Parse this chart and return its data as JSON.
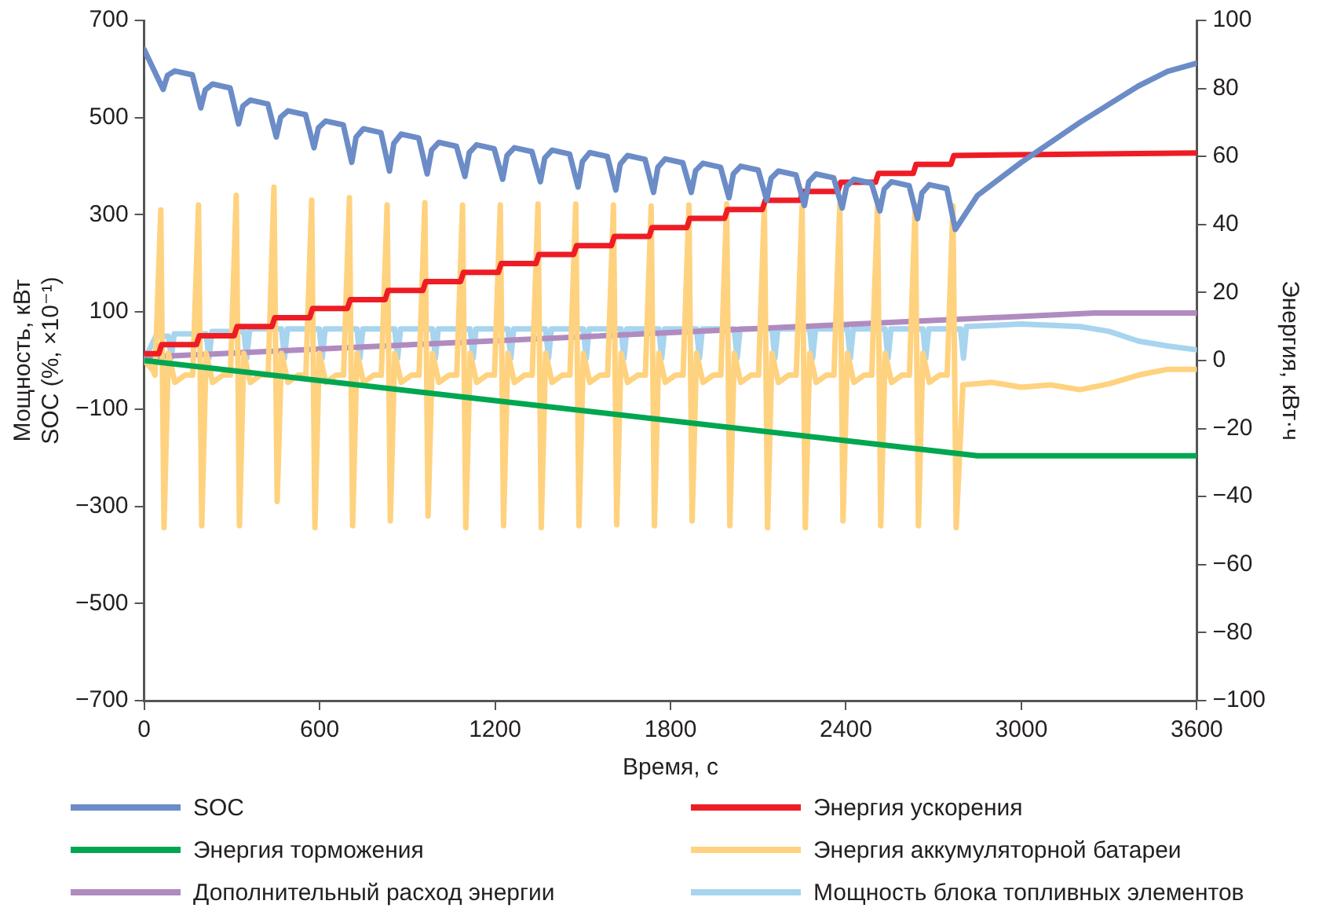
{
  "chart_data": {
    "type": "line",
    "xlabel": "Время, с",
    "ylabel": "Мощность, кВт\nSOC (%, ×10⁻¹)",
    "y2label": "Энергия, кВт·ч",
    "xlim": [
      0,
      3600
    ],
    "xticks": [
      0,
      600,
      1200,
      1800,
      2400,
      3000,
      3600
    ],
    "ylim": [
      -700,
      700
    ],
    "yticks": [
      {
        "value": -700,
        "label": "−700"
      },
      {
        "value": -500,
        "label": "−500"
      },
      {
        "value": -300,
        "label": "−300"
      },
      {
        "value": -100,
        "label": "−100"
      },
      100,
      300,
      500,
      700
    ],
    "y2lim": [
      -100,
      100
    ],
    "y2ticks": [
      {
        "value": -100,
        "label": "−100"
      },
      {
        "value": -80,
        "label": "−80"
      },
      {
        "value": -60,
        "label": "−60"
      },
      {
        "value": -40,
        "label": "−40"
      },
      {
        "value": -20,
        "label": "−20"
      },
      0,
      20,
      40,
      60,
      80,
      100
    ],
    "grid": false,
    "legend": "bottom",
    "marker": "none",
    "line_style": "solid",
    "series": [
      {
        "name": "SOC",
        "color": "#6b8cc7",
        "x": [
          0,
          65,
          80,
          105,
          165,
          194,
          209,
          234,
          294,
          323,
          338,
          363,
          423,
          452,
          467,
          492,
          552,
          581,
          596,
          621,
          681,
          710,
          725,
          750,
          810,
          839,
          854,
          879,
          939,
          968,
          983,
          1008,
          1068,
          1097,
          1112,
          1137,
          1197,
          1226,
          1241,
          1266,
          1326,
          1355,
          1370,
          1395,
          1455,
          1484,
          1499,
          1524,
          1584,
          1613,
          1628,
          1653,
          1713,
          1742,
          1757,
          1782,
          1842,
          1871,
          1886,
          1911,
          1971,
          2000,
          2015,
          2040,
          2100,
          2129,
          2144,
          2169,
          2229,
          2258,
          2273,
          2298,
          2358,
          2387,
          2402,
          2427,
          2487,
          2516,
          2531,
          2556,
          2616,
          2645,
          2660,
          2685,
          2745,
          2774,
          2850,
          3000,
          3200,
          3400,
          3500,
          3600
        ],
        "values": [
          640,
          558,
          587,
          596,
          588,
          520,
          557,
          569,
          561,
          487,
          524,
          536,
          528,
          460,
          501,
          514,
          506,
          438,
          479,
          493,
          485,
          408,
          460,
          477,
          469,
          390,
          447,
          466,
          458,
          384,
          433,
          449,
          441,
          379,
          428,
          444,
          436,
          373,
          422,
          438,
          430,
          368,
          417,
          433,
          425,
          357,
          410,
          428,
          420,
          351,
          404,
          422,
          414,
          346,
          398,
          415,
          407,
          346,
          391,
          406,
          398,
          335,
          384,
          400,
          392,
          330,
          375,
          390,
          382,
          319,
          368,
          384,
          376,
          314,
          358,
          373,
          365,
          308,
          353,
          368,
          360,
          292,
          345,
          362,
          354,
          270,
          340,
          408,
          490,
          565,
          595,
          612
        ]
      },
      {
        "name": "Энергия ускорения",
        "color": "#ee1c25",
        "axis": "y2",
        "x": [
          0,
          50,
          60,
          179,
          189,
          308,
          318,
          437,
          447,
          566,
          576,
          695,
          705,
          824,
          834,
          953,
          963,
          1082,
          1092,
          1211,
          1221,
          1340,
          1350,
          1469,
          1479,
          1598,
          1608,
          1727,
          1737,
          1856,
          1866,
          1985,
          1995,
          2114,
          2124,
          2243,
          2253,
          2372,
          2382,
          2501,
          2511,
          2630,
          2640,
          2759,
          2769,
          3600
        ],
        "values": [
          2,
          2,
          4.7,
          4.7,
          7.3,
          7.3,
          10,
          10,
          12.6,
          12.6,
          15.3,
          15.3,
          17.9,
          17.9,
          20.6,
          20.6,
          23.2,
          23.2,
          25.9,
          25.9,
          28.5,
          28.5,
          31.2,
          31.2,
          33.8,
          33.8,
          36.5,
          36.5,
          39.1,
          39.1,
          41.8,
          41.8,
          44.4,
          44.4,
          47.1,
          47.1,
          49.7,
          49.7,
          52.4,
          52.4,
          55,
          55,
          57.7,
          57.7,
          60.3,
          61
        ]
      },
      {
        "name": "Энергия торможения",
        "color": "#00a650",
        "axis": "y2",
        "x": [
          0,
          2850,
          3600
        ],
        "values": [
          0,
          -28,
          -28
        ]
      },
      {
        "name": "Энергия аккумуляторной батареи",
        "color": "#ffd27f",
        "x": [
          0,
          30,
          37,
          57,
          68,
          83,
          105,
          140,
          166,
          186,
          197,
          212,
          234,
          269,
          295,
          315,
          326,
          341,
          363,
          398,
          424,
          444,
          455,
          470,
          492,
          527,
          553,
          573,
          584,
          599,
          621,
          656,
          682,
          702,
          713,
          728,
          750,
          785,
          811,
          831,
          842,
          857,
          879,
          914,
          940,
          960,
          971,
          986,
          1008,
          1043,
          1069,
          1089,
          1100,
          1115,
          1137,
          1172,
          1198,
          1218,
          1229,
          1244,
          1266,
          1301,
          1327,
          1347,
          1358,
          1373,
          1395,
          1430,
          1456,
          1476,
          1487,
          1502,
          1524,
          1559,
          1585,
          1605,
          1616,
          1631,
          1653,
          1688,
          1714,
          1734,
          1745,
          1760,
          1782,
          1817,
          1843,
          1863,
          1874,
          1889,
          1911,
          1946,
          1972,
          1992,
          2003,
          2018,
          2040,
          2075,
          2101,
          2121,
          2132,
          2147,
          2169,
          2204,
          2230,
          2250,
          2261,
          2276,
          2298,
          2333,
          2359,
          2379,
          2390,
          2405,
          2427,
          2462,
          2488,
          2508,
          2519,
          2534,
          2556,
          2591,
          2617,
          2637,
          2648,
          2663,
          2685,
          2720,
          2746,
          2766,
          2777,
          2800,
          2900,
          3000,
          3100,
          3200,
          3300,
          3400,
          3500,
          3600
        ],
        "values": [
          0,
          -20,
          -30,
          310,
          -344,
          15,
          -45,
          -30,
          -30,
          320,
          -340,
          15,
          -45,
          -30,
          -30,
          340,
          -340,
          15,
          -45,
          -30,
          -30,
          357,
          -290,
          15,
          -45,
          -30,
          -30,
          330,
          -344,
          15,
          -45,
          -30,
          -30,
          335,
          -340,
          15,
          -45,
          -30,
          -30,
          320,
          -330,
          15,
          -45,
          -30,
          -30,
          325,
          -320,
          15,
          -45,
          -30,
          -30,
          320,
          -344,
          15,
          -45,
          -30,
          -30,
          320,
          -340,
          15,
          -45,
          -30,
          -30,
          322,
          -344,
          15,
          -45,
          -30,
          -30,
          322,
          -340,
          15,
          -45,
          -30,
          -30,
          320,
          -338,
          15,
          -45,
          -30,
          -30,
          318,
          -340,
          15,
          -45,
          -30,
          -30,
          320,
          -330,
          15,
          -45,
          -30,
          -30,
          322,
          -340,
          15,
          -45,
          -30,
          -30,
          320,
          -344,
          15,
          -45,
          -30,
          -30,
          318,
          -344,
          15,
          -45,
          -30,
          -30,
          322,
          -330,
          15,
          -45,
          -30,
          -30,
          318,
          -340,
          15,
          -45,
          -30,
          -30,
          320,
          -340,
          15,
          -45,
          -30,
          -30,
          318,
          -344,
          -50,
          -45,
          -55,
          -50,
          -60,
          -48,
          -30,
          -18,
          -18
        ]
      },
      {
        "name": "Дополнительный расход энергии",
        "color": "#b08bc0",
        "axis": "y2",
        "x": [
          0,
          3250,
          3600
        ],
        "values": [
          1,
          14,
          14
        ]
      },
      {
        "name": "Мощность блока топливных элементов",
        "color": "#a7d4ee",
        "x": [
          0,
          40,
          83,
          93,
          103,
          212,
          222,
          232,
          341,
          351,
          361,
          470,
          480,
          490,
          599,
          609,
          619,
          728,
          738,
          748,
          857,
          867,
          877,
          986,
          996,
          1006,
          1115,
          1125,
          1135,
          1244,
          1254,
          1264,
          1373,
          1383,
          1393,
          1502,
          1512,
          1522,
          1631,
          1641,
          1651,
          1760,
          1770,
          1780,
          1889,
          1899,
          1909,
          2018,
          2028,
          2038,
          2147,
          2157,
          2167,
          2276,
          2286,
          2296,
          2405,
          2415,
          2425,
          2534,
          2544,
          2554,
          2663,
          2673,
          2683,
          2792,
          2802,
          2812,
          3000,
          3200,
          3300,
          3400,
          3500,
          3600
        ],
        "values": [
          0,
          50,
          50,
          5,
          55,
          55,
          5,
          60,
          60,
          5,
          65,
          65,
          5,
          65,
          65,
          5,
          65,
          65,
          5,
          65,
          65,
          5,
          65,
          65,
          5,
          65,
          65,
          5,
          65,
          65,
          5,
          65,
          65,
          5,
          65,
          65,
          5,
          65,
          65,
          5,
          65,
          65,
          5,
          65,
          65,
          5,
          65,
          65,
          5,
          65,
          65,
          5,
          65,
          65,
          5,
          65,
          65,
          5,
          65,
          65,
          5,
          65,
          65,
          5,
          65,
          65,
          5,
          70,
          75,
          70,
          60,
          40,
          30,
          22
        ]
      }
    ]
  }
}
